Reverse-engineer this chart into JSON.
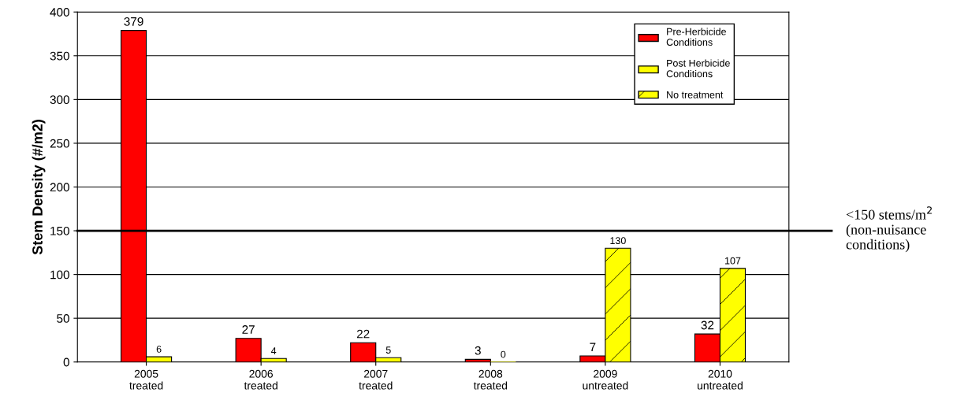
{
  "chart_data": {
    "type": "bar",
    "ylabel": "Stem Density (#/m2)",
    "categories": [
      "2005\ntreated",
      "2006\ntreated",
      "2007\ntreated",
      "2008\ntreated",
      "2009\nuntreated",
      "2010\nuntreated"
    ],
    "series": [
      {
        "name": "Pre-Herbicide\nConditions",
        "color": "#ff0000",
        "values": [
          379,
          27,
          22,
          3,
          7,
          32
        ]
      },
      {
        "name": "Post Herbicide\nConditions",
        "color": "#ffff00",
        "values": [
          6,
          4,
          5,
          0,
          null,
          null
        ]
      },
      {
        "name": "No treatment",
        "color": "#ffff00",
        "values": [
          null,
          null,
          null,
          null,
          130,
          107
        ]
      }
    ],
    "ylim": [
      0,
      400
    ],
    "yticks": [
      0,
      50,
      100,
      150,
      200,
      250,
      300,
      350,
      400
    ],
    "ref_lines": [
      {
        "axis": "y",
        "value": 150,
        "label": "<150 stems/m$^{2}$\n(non-nuisance\nconditions)",
        "color": "#000000"
      }
    ],
    "data_labels": true,
    "grid": "y",
    "legend": "top right"
  }
}
